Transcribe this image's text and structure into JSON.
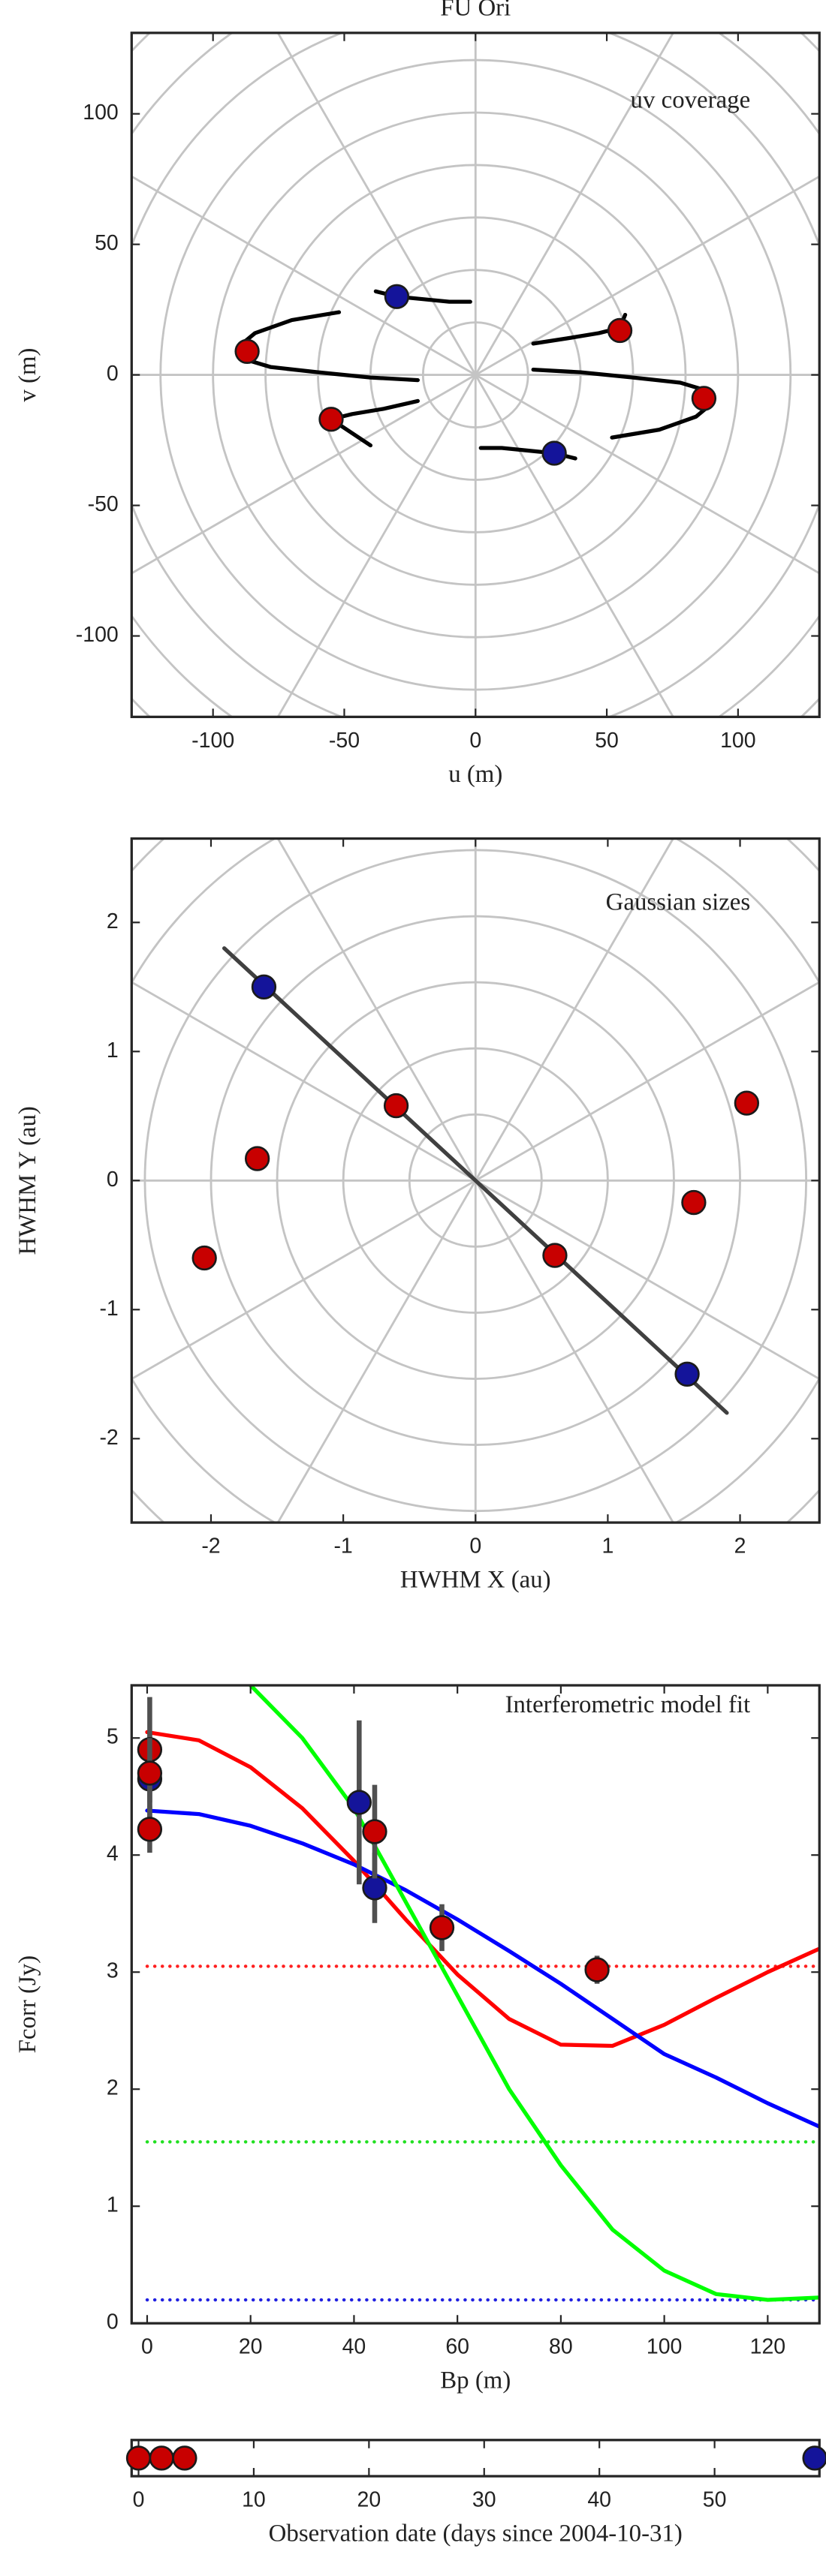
{
  "chart_data": [
    {
      "type": "scatter",
      "title": "FU Ori",
      "annotation": "uv coverage",
      "xlabel": "u (m)",
      "ylabel": "v (m)",
      "xlim": [
        -131,
        131
      ],
      "ylim": [
        -131,
        131
      ],
      "xticks": [
        -100,
        -50,
        0,
        50,
        100
      ],
      "yticks": [
        -100,
        -50,
        0,
        50,
        100
      ],
      "polar_grid": {
        "ring_step": 20,
        "spoke_step": 30
      },
      "series": [
        {
          "mode": "line",
          "color": "#000000",
          "x": [
            -52,
            -70,
            -84,
            -90,
            -88,
            -78,
            -60,
            -40,
            -22
          ],
          "values": [
            24,
            21,
            16,
            11,
            6,
            3,
            1,
            -1,
            -2
          ]
        },
        {
          "mode": "line",
          "color": "#000000",
          "x": [
            52,
            70,
            84,
            90,
            88,
            78,
            60,
            40,
            22
          ],
          "values": [
            -24,
            -21,
            -16,
            -11,
            -6,
            -3,
            -1,
            1,
            2
          ]
        },
        {
          "mode": "line",
          "color": "#000000",
          "x": [
            -38,
            -30,
            -20,
            -10,
            -2
          ],
          "values": [
            32,
            30,
            29,
            28,
            28
          ]
        },
        {
          "mode": "line",
          "color": "#000000",
          "x": [
            38,
            30,
            20,
            10,
            2
          ],
          "values": [
            -32,
            -30,
            -29,
            -28,
            -28
          ]
        },
        {
          "mode": "line",
          "color": "#000000",
          "x": [
            22,
            35,
            47,
            55,
            57
          ],
          "values": [
            12,
            14,
            16,
            18,
            23
          ]
        },
        {
          "mode": "line",
          "color": "#000000",
          "x": [
            -22,
            -35,
            -47,
            -55,
            -40
          ],
          "values": [
            -10,
            -13,
            -15,
            -17,
            -27
          ]
        },
        {
          "mode": "markers",
          "color": "#14149a",
          "x": [
            -30,
            30
          ],
          "values": [
            30,
            -30
          ]
        },
        {
          "mode": "markers",
          "color": "#c80000",
          "x": [
            -87,
            87,
            55,
            -55
          ],
          "values": [
            9,
            -9,
            17,
            -17
          ]
        }
      ]
    },
    {
      "type": "scatter",
      "annotation": "Gaussian sizes",
      "xlabel": "HWHM X (au)",
      "ylabel": "HWHM Y (au)",
      "xlim": [
        -2.6,
        2.6
      ],
      "ylim": [
        -2.65,
        2.65
      ],
      "xticks": [
        -2,
        -1,
        0,
        1,
        2
      ],
      "yticks": [
        -2,
        -1,
        0,
        1,
        2
      ],
      "polar_grid": {
        "ring_step": 0.5,
        "spoke_step": 30
      },
      "series": [
        {
          "mode": "line",
          "color": "#404040",
          "x": [
            -1.9,
            1.9
          ],
          "values": [
            1.8,
            -1.8
          ]
        },
        {
          "mode": "markers",
          "color": "#14149a",
          "x": [
            -1.6,
            1.6
          ],
          "values": [
            1.5,
            -1.5
          ]
        },
        {
          "mode": "markers",
          "color": "#c80000",
          "x": [
            -0.6,
            0.6,
            -1.65,
            1.65,
            -2.05,
            2.05
          ],
          "values": [
            0.58,
            -0.58,
            0.17,
            -0.17,
            -0.6,
            0.6
          ]
        }
      ]
    },
    {
      "type": "line",
      "annotation": "Interferometric model fit",
      "xlabel": "Bp (m)",
      "ylabel": "Fcorr (Jy)",
      "xlim": [
        -3,
        130
      ],
      "ylim": [
        0,
        5.45
      ],
      "xticks": [
        0,
        20,
        40,
        60,
        80,
        100,
        120
      ],
      "yticks": [
        0,
        1,
        2,
        3,
        4,
        5
      ],
      "series": [
        {
          "mode": "line",
          "dash": "dotted",
          "color": "#ff2020",
          "x": [
            0,
            130
          ],
          "values": [
            3.05,
            3.05
          ]
        },
        {
          "mode": "line",
          "dash": "dotted",
          "color": "#20e020",
          "x": [
            0,
            130
          ],
          "values": [
            1.55,
            1.55
          ]
        },
        {
          "mode": "line",
          "dash": "dotted",
          "color": "#2020e0",
          "x": [
            0,
            130
          ],
          "values": [
            0.2,
            0.2
          ]
        },
        {
          "mode": "line",
          "color": "#ff0000",
          "x": [
            0,
            10,
            20,
            30,
            40,
            50,
            60,
            70,
            80,
            90,
            100,
            110,
            120,
            130
          ],
          "values": [
            5.05,
            4.98,
            4.75,
            4.4,
            3.95,
            3.45,
            2.98,
            2.6,
            2.38,
            2.37,
            2.55,
            2.78,
            3.0,
            3.2
          ]
        },
        {
          "mode": "line",
          "color": "#0000ff",
          "x": [
            0,
            10,
            20,
            30,
            40,
            50,
            60,
            70,
            80,
            90,
            100,
            110,
            120,
            130
          ],
          "values": [
            4.38,
            4.35,
            4.25,
            4.1,
            3.92,
            3.7,
            3.45,
            3.18,
            2.9,
            2.6,
            2.3,
            2.1,
            1.88,
            1.68
          ]
        },
        {
          "mode": "line",
          "color": "#00ff00",
          "x": [
            20,
            30,
            40,
            50,
            60,
            70,
            80,
            90,
            100,
            110,
            120,
            130
          ],
          "values": [
            5.45,
            5.0,
            4.4,
            3.6,
            2.8,
            2.0,
            1.35,
            0.8,
            0.45,
            0.25,
            0.2,
            0.22
          ]
        },
        {
          "mode": "markers",
          "color": "#14149a",
          "error_color": "#505050",
          "x": [
            0.5,
            41,
            44
          ],
          "values": [
            4.65,
            4.45,
            3.72
          ],
          "errors": [
            0.4,
            0.7,
            0.3
          ]
        },
        {
          "mode": "markers",
          "color": "#c80000",
          "error_color": "#505050",
          "x": [
            0.5,
            0.5,
            0.5,
            44,
            57,
            87
          ],
          "values": [
            4.9,
            4.7,
            4.22,
            4.2,
            3.38,
            3.02
          ],
          "errors": [
            0.45,
            0.3,
            0.2,
            0.4,
            0.2,
            0.12
          ]
        }
      ]
    },
    {
      "type": "scatter",
      "xlabel": "Observation date (days since 2004-10-31)",
      "xlim": [
        -0.6,
        59.1
      ],
      "xticks": [
        0,
        10,
        20,
        30,
        40,
        50
      ],
      "series": [
        {
          "mode": "markers",
          "color": "#c80000",
          "x": [
            0,
            2,
            4
          ]
        },
        {
          "mode": "markers",
          "color": "#14149a",
          "x": [
            58.7
          ]
        }
      ]
    }
  ]
}
